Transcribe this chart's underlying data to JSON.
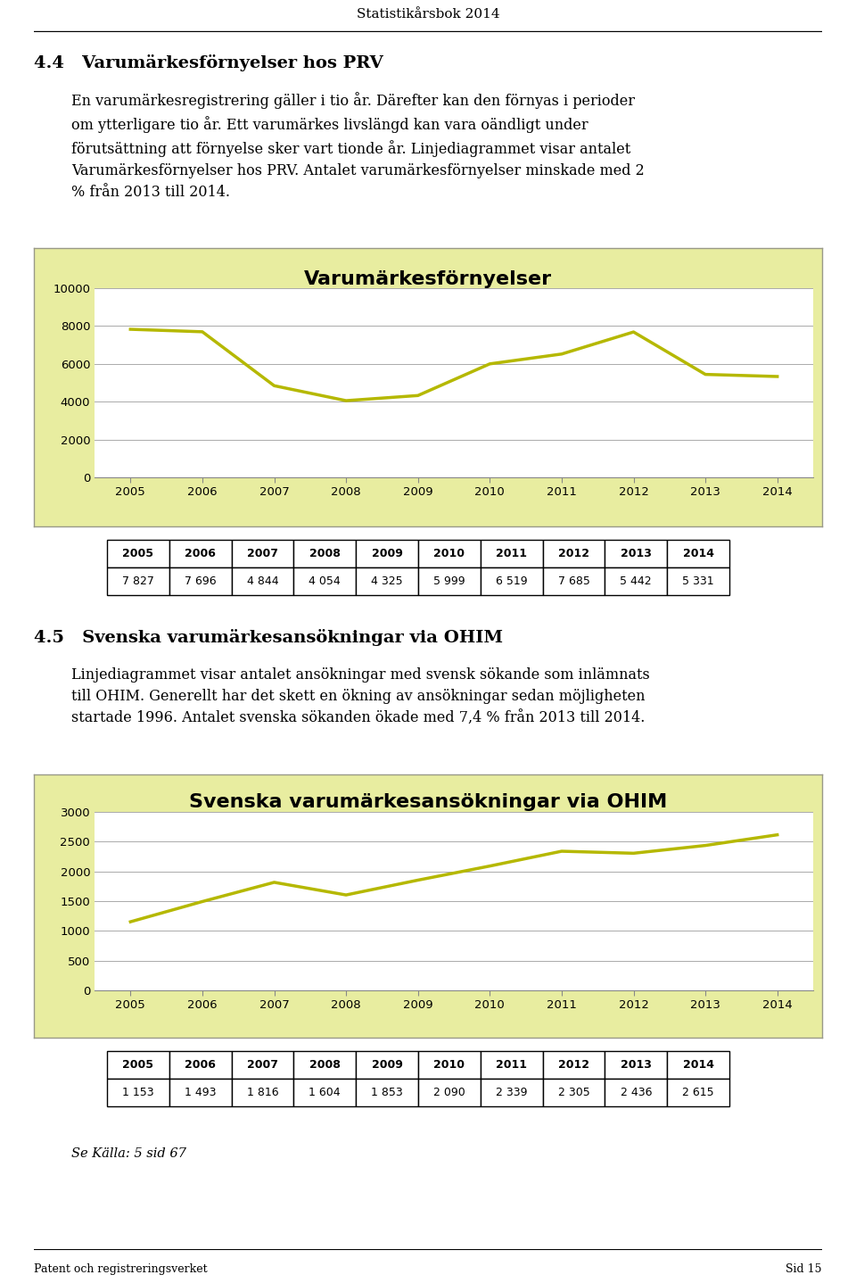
{
  "page_title": "Statistikårsbok 2014",
  "section_title1": "4.4   Varumärkesförnyelser hos PRV",
  "section_body1": "En varumärkesregistrering gäller i tio år. Därefter kan den förnyas i perioder\nom ytterligare tio år. Ett varumärkes livslängd kan vara oändligt under\nförutsättning att förnyelse sker vart tionde år. Linjediagrammet visar antalet\nVarumärkesförnyelser hos PRV. Antalet varumärkesförnyelser minskade med 2\n% från 2013 till 2014.",
  "chart1_title": "Varumärkesförnyelser",
  "chart1_years": [
    2005,
    2006,
    2007,
    2008,
    2009,
    2010,
    2011,
    2012,
    2013,
    2014
  ],
  "chart1_values": [
    7827,
    7696,
    4844,
    4054,
    4325,
    5999,
    6519,
    7685,
    5442,
    5331
  ],
  "chart1_ylim": [
    0,
    10000
  ],
  "chart1_yticks": [
    0,
    2000,
    4000,
    6000,
    8000,
    10000
  ],
  "chart1_bg": "#e8eda0",
  "chart1_line_color": "#b5b800",
  "section_title2": "4.5   Svenska varumärkesansökningar via OHIM",
  "section_body2": "Linjediagrammet visar antalet ansökningar med svensk sökande som inlämnats\ntill OHIM. Generellt har det skett en ökning av ansökningar sedan möjligheten\nstartade 1996. Antalet svenska sökanden ökade med 7,4 % från 2013 till 2014.",
  "chart2_title": "Svenska varumärkesansökningar via OHIM",
  "chart2_years": [
    2005,
    2006,
    2007,
    2008,
    2009,
    2010,
    2011,
    2012,
    2013,
    2014
  ],
  "chart2_values": [
    1153,
    1493,
    1816,
    1604,
    1853,
    2090,
    2339,
    2305,
    2436,
    2615
  ],
  "chart2_ylim": [
    0,
    3000
  ],
  "chart2_yticks": [
    0,
    500,
    1000,
    1500,
    2000,
    2500,
    3000
  ],
  "chart2_bg": "#e8eda0",
  "chart2_line_color": "#b5b800",
  "table1_years": [
    "2005",
    "2006",
    "2007",
    "2008",
    "2009",
    "2010",
    "2011",
    "2012",
    "2013",
    "2014"
  ],
  "table1_values": [
    "7 827",
    "7 696",
    "4 844",
    "4 054",
    "4 325",
    "5 999",
    "6 519",
    "7 685",
    "5 442",
    "5 331"
  ],
  "table2_years": [
    "2005",
    "2006",
    "2007",
    "2008",
    "2009",
    "2010",
    "2011",
    "2012",
    "2013",
    "2014"
  ],
  "table2_values": [
    "1 153",
    "1 493",
    "1 816",
    "1 604",
    "1 853",
    "2 090",
    "2 339",
    "2 305",
    "2 436",
    "2 615"
  ],
  "footer_left": "Patent och registreringsverket",
  "footer_right": "Sid 15",
  "source_note": "Se Källa: 5 sid 67",
  "bg_color": "#ffffff",
  "chart_border": "#b8b8a0",
  "line_color": "#b5b800"
}
